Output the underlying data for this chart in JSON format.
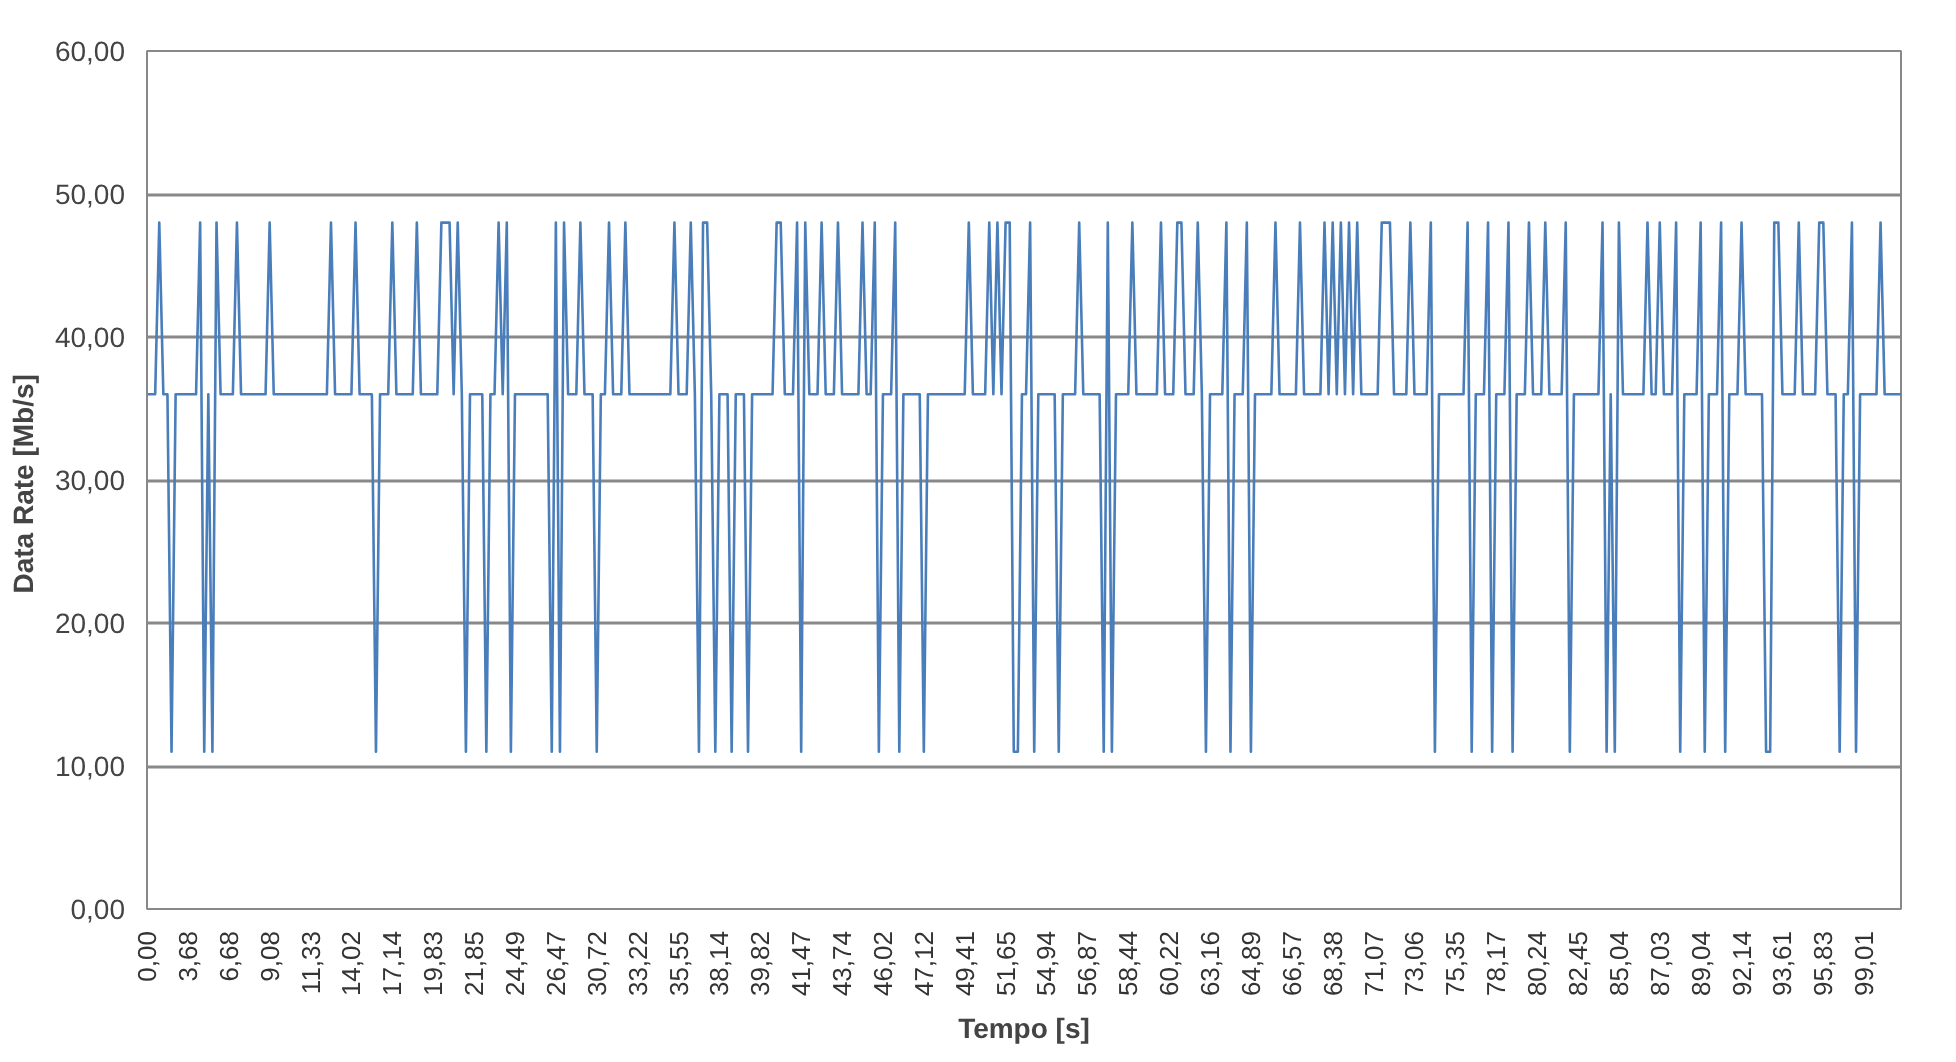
{
  "chart_data": {
    "type": "line",
    "xlabel": "Tempo [s]",
    "ylabel": "Data Rate  [Mb/s]",
    "categories": [
      "0,00",
      null,
      null,
      null,
      null,
      null,
      null,
      null,
      null,
      null,
      "3,68",
      null,
      null,
      null,
      null,
      null,
      null,
      null,
      null,
      null,
      "6,68",
      null,
      null,
      null,
      null,
      null,
      null,
      null,
      null,
      null,
      "9,08",
      null,
      null,
      null,
      null,
      null,
      null,
      null,
      null,
      null,
      "11,33",
      null,
      null,
      null,
      null,
      null,
      null,
      null,
      null,
      null,
      "14,02",
      null,
      null,
      null,
      null,
      null,
      null,
      null,
      null,
      null,
      "17,14",
      null,
      null,
      null,
      null,
      null,
      null,
      null,
      null,
      null,
      "19,83",
      null,
      null,
      null,
      null,
      null,
      null,
      null,
      null,
      null,
      "21,85",
      null,
      null,
      null,
      null,
      null,
      null,
      null,
      null,
      null,
      "24,49",
      null,
      null,
      null,
      null,
      null,
      null,
      null,
      null,
      null,
      "26,47",
      null,
      null,
      null,
      null,
      null,
      null,
      null,
      null,
      null,
      "30,72",
      null,
      null,
      null,
      null,
      null,
      null,
      null,
      null,
      null,
      "33,22",
      null,
      null,
      null,
      null,
      null,
      null,
      null,
      null,
      null,
      "35,55",
      null,
      null,
      null,
      null,
      null,
      null,
      null,
      null,
      null,
      "38,14",
      null,
      null,
      null,
      null,
      null,
      null,
      null,
      null,
      null,
      "39,82",
      null,
      null,
      null,
      null,
      null,
      null,
      null,
      null,
      null,
      "41,47",
      null,
      null,
      null,
      null,
      null,
      null,
      null,
      null,
      null,
      "43,74",
      null,
      null,
      null,
      null,
      null,
      null,
      null,
      null,
      null,
      "46,02",
      null,
      null,
      null,
      null,
      null,
      null,
      null,
      null,
      null,
      "47,12",
      null,
      null,
      null,
      null,
      null,
      null,
      null,
      null,
      null,
      "49,41",
      null,
      null,
      null,
      null,
      null,
      null,
      null,
      null,
      null,
      "51,65",
      null,
      null,
      null,
      null,
      null,
      null,
      null,
      null,
      null,
      "54,94",
      null,
      null,
      null,
      null,
      null,
      null,
      null,
      null,
      null,
      "56,87",
      null,
      null,
      null,
      null,
      null,
      null,
      null,
      null,
      null,
      "58,44",
      null,
      null,
      null,
      null,
      null,
      null,
      null,
      null,
      null,
      "60,22",
      null,
      null,
      null,
      null,
      null,
      null,
      null,
      null,
      null,
      "63,16",
      null,
      null,
      null,
      null,
      null,
      null,
      null,
      null,
      null,
      "64,89",
      null,
      null,
      null,
      null,
      null,
      null,
      null,
      null,
      null,
      "66,57",
      null,
      null,
      null,
      null,
      null,
      null,
      null,
      null,
      null,
      "68,38",
      null,
      null,
      null,
      null,
      null,
      null,
      null,
      null,
      null,
      "71,07",
      null,
      null,
      null,
      null,
      null,
      null,
      null,
      null,
      null,
      "73,06",
      null,
      null,
      null,
      null,
      null,
      null,
      null,
      null,
      null,
      "75,35",
      null,
      null,
      null,
      null,
      null,
      null,
      null,
      null,
      null,
      "78,17",
      null,
      null,
      null,
      null,
      null,
      null,
      null,
      null,
      null,
      "80,24",
      null,
      null,
      null,
      null,
      null,
      null,
      null,
      null,
      null,
      "82,45",
      null,
      null,
      null,
      null,
      null,
      null,
      null,
      null,
      null,
      "85,04",
      null,
      null,
      null,
      null,
      null,
      null,
      null,
      null,
      null,
      "87,03",
      null,
      null,
      null,
      null,
      null,
      null,
      null,
      null,
      null,
      "89,04",
      null,
      null,
      null,
      null,
      null,
      null,
      null,
      null,
      null,
      "92,14",
      null,
      null,
      null,
      null,
      null,
      null,
      null,
      null,
      null,
      "93,61",
      null,
      null,
      null,
      null,
      null,
      null,
      null,
      null,
      null,
      "95,83",
      null,
      null,
      null,
      null,
      null,
      null,
      null,
      null,
      null,
      "99,01",
      null,
      null,
      null,
      null,
      null,
      null,
      null,
      null,
      null
    ],
    "series": [
      {
        "color": "#4a7ebb",
        "values": [
          36,
          36,
          36,
          48,
          36,
          36,
          11,
          36,
          36,
          36,
          36,
          36,
          36,
          48,
          11,
          36,
          11,
          48,
          36,
          36,
          36,
          36,
          48,
          36,
          36,
          36,
          36,
          36,
          36,
          36,
          48,
          36,
          36,
          36,
          36,
          36,
          36,
          36,
          36,
          36,
          36,
          36,
          36,
          36,
          36,
          48,
          36,
          36,
          36,
          36,
          36,
          48,
          36,
          36,
          36,
          36,
          11,
          36,
          36,
          36,
          48,
          36,
          36,
          36,
          36,
          36,
          48,
          36,
          36,
          36,
          36,
          36,
          48,
          48,
          48,
          36,
          48,
          36,
          11,
          36,
          36,
          36,
          36,
          11,
          36,
          36,
          48,
          36,
          48,
          11,
          36,
          36,
          36,
          36,
          36,
          36,
          36,
          36,
          36,
          11,
          48,
          11,
          48,
          36,
          36,
          36,
          48,
          36,
          36,
          36,
          11,
          36,
          36,
          48,
          36,
          36,
          36,
          48,
          36,
          36,
          36,
          36,
          36,
          36,
          36,
          36,
          36,
          36,
          36,
          48,
          36,
          36,
          36,
          48,
          36,
          11,
          48,
          48,
          36,
          11,
          36,
          36,
          36,
          11,
          36,
          36,
          36,
          11,
          36,
          36,
          36,
          36,
          36,
          36,
          48,
          48,
          36,
          36,
          36,
          48,
          11,
          48,
          36,
          36,
          36,
          48,
          36,
          36,
          36,
          48,
          36,
          36,
          36,
          36,
          36,
          48,
          36,
          36,
          48,
          11,
          36,
          36,
          36,
          48,
          11,
          36,
          36,
          36,
          36,
          36,
          11,
          36,
          36,
          36,
          36,
          36,
          36,
          36,
          36,
          36,
          36,
          48,
          36,
          36,
          36,
          36,
          48,
          36,
          48,
          36,
          48,
          48,
          11,
          11,
          36,
          36,
          48,
          11,
          36,
          36,
          36,
          36,
          36,
          11,
          36,
          36,
          36,
          36,
          48,
          36,
          36,
          36,
          36,
          36,
          11,
          48,
          11,
          36,
          36,
          36,
          36,
          48,
          36,
          36,
          36,
          36,
          36,
          36,
          48,
          36,
          36,
          36,
          48,
          48,
          36,
          36,
          36,
          48,
          36,
          11,
          36,
          36,
          36,
          36,
          48,
          11,
          36,
          36,
          36,
          48,
          11,
          36,
          36,
          36,
          36,
          36,
          48,
          36,
          36,
          36,
          36,
          36,
          48,
          36,
          36,
          36,
          36,
          36,
          48,
          36,
          48,
          36,
          48,
          36,
          48,
          36,
          48,
          36,
          36,
          36,
          36,
          36,
          48,
          48,
          48,
          36,
          36,
          36,
          36,
          48,
          36,
          36,
          36,
          36,
          48,
          11,
          36,
          36,
          36,
          36,
          36,
          36,
          36,
          48,
          11,
          36,
          36,
          36,
          48,
          11,
          36,
          36,
          36,
          48,
          11,
          36,
          36,
          36,
          48,
          36,
          36,
          36,
          48,
          36,
          36,
          36,
          36,
          48,
          11,
          36,
          36,
          36,
          36,
          36,
          36,
          36,
          48,
          11,
          36,
          11,
          48,
          36,
          36,
          36,
          36,
          36,
          36,
          48,
          36,
          36,
          48,
          36,
          36,
          36,
          48,
          11,
          36,
          36,
          36,
          36,
          48,
          11,
          36,
          36,
          36,
          48,
          11,
          36,
          36,
          36,
          48,
          36,
          36,
          36,
          36,
          36,
          11,
          11,
          48,
          48,
          36,
          36,
          36,
          36,
          48,
          36,
          36,
          36,
          36,
          48,
          48,
          36,
          36,
          36,
          11,
          36,
          36,
          48,
          11,
          36,
          36,
          36,
          36,
          36,
          48,
          36,
          36,
          36,
          36,
          36
        ]
      }
    ],
    "ylim": [
      0,
      60
    ],
    "yticks": [
      {
        "value": 0,
        "label": "0,00"
      },
      {
        "value": 10,
        "label": "10,00"
      },
      {
        "value": 20,
        "label": "20,00"
      },
      {
        "value": 30,
        "label": "30,00"
      },
      {
        "value": 40,
        "label": "40,00"
      },
      {
        "value": 50,
        "label": "50,00"
      },
      {
        "value": 60,
        "label": "60,00"
      }
    ],
    "grid": "y",
    "marker": "none",
    "line_style": "solid"
  }
}
